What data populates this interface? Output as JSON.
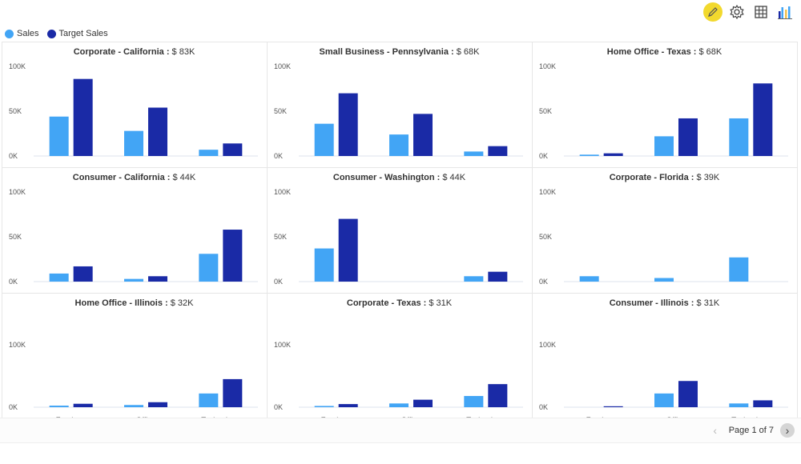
{
  "toolbar": {
    "icons": [
      "pencil-icon",
      "gear-icon",
      "table-icon",
      "chart-icon"
    ]
  },
  "colors": {
    "sales": "#42a5f5",
    "target": "#1a2aa6",
    "grid_line": "#dde3ee",
    "cell_border": "#e6e6e6"
  },
  "legend": [
    {
      "label": "Sales",
      "color": "#42a5f5"
    },
    {
      "label": "Target Sales",
      "color": "#1a2aa6"
    }
  ],
  "pager": {
    "text": "Page 1 of 7"
  },
  "chart_data": {
    "type": "bar",
    "categories": [
      "Furniture",
      "Office Supplies",
      "Technology"
    ],
    "series_names": [
      "Sales",
      "Target Sales"
    ],
    "ylim": [
      0,
      100000
    ],
    "yticks": [
      "0K",
      "50K",
      "100K"
    ],
    "panels": [
      {
        "title": "Corporate - California",
        "value": "$ 83K",
        "sales": [
          44000,
          28000,
          7000
        ],
        "target": [
          86000,
          54000,
          14000
        ]
      },
      {
        "title": "Small Business - Pennsylvania",
        "value": "$ 68K",
        "sales": [
          36000,
          24000,
          5000
        ],
        "target": [
          70000,
          47000,
          11000
        ]
      },
      {
        "title": "Home Office - Texas",
        "value": "$ 68K",
        "sales": [
          1500,
          22000,
          42000
        ],
        "target": [
          3000,
          42000,
          81000
        ]
      },
      {
        "title": "Consumer - California",
        "value": "$ 44K",
        "sales": [
          9000,
          3000,
          31000
        ],
        "target": [
          17000,
          6000,
          58000
        ]
      },
      {
        "title": "Consumer - Washington",
        "value": "$ 44K",
        "sales": [
          37000,
          0,
          6000
        ],
        "target": [
          70000,
          0,
          11000
        ]
      },
      {
        "title": "Corporate - Florida",
        "value": "$ 39K",
        "sales": [
          6000,
          4000,
          27000
        ],
        "target": [
          0,
          0,
          0
        ]
      },
      {
        "title": "Home Office - Illinois",
        "value": "$ 32K",
        "sales": [
          2500,
          3500,
          22000
        ],
        "target": [
          5500,
          8000,
          45000
        ]
      },
      {
        "title": "Corporate - Texas",
        "value": "$ 31K",
        "sales": [
          2000,
          6000,
          18000
        ],
        "target": [
          5000,
          12000,
          37000
        ]
      },
      {
        "title": "Consumer - Illinois",
        "value": "$ 31K",
        "sales": [
          0,
          22000,
          6000
        ],
        "target": [
          1500,
          42000,
          11000
        ]
      }
    ]
  }
}
